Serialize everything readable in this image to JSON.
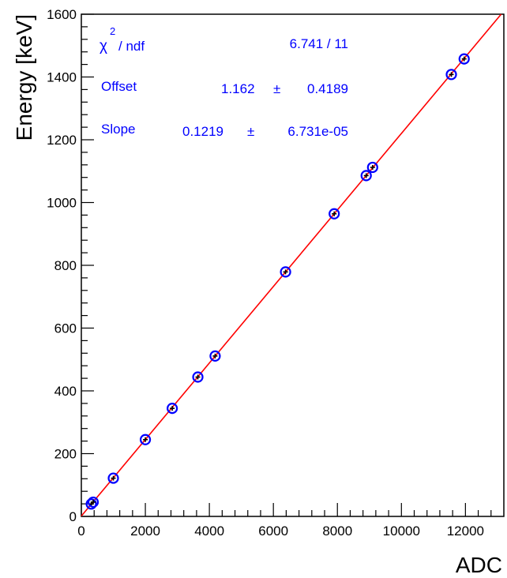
{
  "chart_data": {
    "type": "scatter",
    "xlabel": "ADC",
    "ylabel": "Energy [keV]",
    "xlim": [
      0,
      13200
    ],
    "ylim": [
      0,
      1600
    ],
    "x_ticks": [
      0,
      2000,
      4000,
      6000,
      8000,
      10000,
      12000
    ],
    "x_tick_labels": [
      "0",
      "2000",
      "4000",
      "6000",
      "8000",
      "10000",
      "12000"
    ],
    "y_ticks": [
      0,
      200,
      400,
      600,
      800,
      1000,
      1200,
      1400,
      1600
    ],
    "y_tick_labels": [
      "0",
      "200",
      "400",
      "600",
      "800",
      "1000",
      "1200",
      "1400",
      "1600"
    ],
    "grid": false,
    "points": [
      {
        "x": 310,
        "y": 39.5
      },
      {
        "x": 370,
        "y": 45.5
      },
      {
        "x": 1000,
        "y": 121.8
      },
      {
        "x": 2000,
        "y": 244.7
      },
      {
        "x": 2840,
        "y": 344.3
      },
      {
        "x": 3640,
        "y": 444.0
      },
      {
        "x": 4180,
        "y": 511.0
      },
      {
        "x": 6380,
        "y": 778.9
      },
      {
        "x": 7900,
        "y": 964.1
      },
      {
        "x": 8900,
        "y": 1085.8
      },
      {
        "x": 9100,
        "y": 1112.1
      },
      {
        "x": 11560,
        "y": 1408.0
      },
      {
        "x": 11960,
        "y": 1457.6
      }
    ],
    "fit": {
      "type": "linear",
      "offset": 1.162,
      "slope": 0.1219,
      "color": "#ff0000"
    },
    "marker_color": "#0000ff",
    "stats_box": {
      "chi2_symbol": "χ",
      "chi2_superscript": "2",
      "chi2_label": " / ndf",
      "chi2_value": "6.741 / 11",
      "offset_label": "Offset",
      "offset_value": "1.162",
      "offset_error": "0.4189",
      "slope_label": "Slope",
      "slope_value": "0.1219",
      "slope_error": "6.731e-05",
      "pm_symbol": "±",
      "color": "#0000ff"
    }
  }
}
